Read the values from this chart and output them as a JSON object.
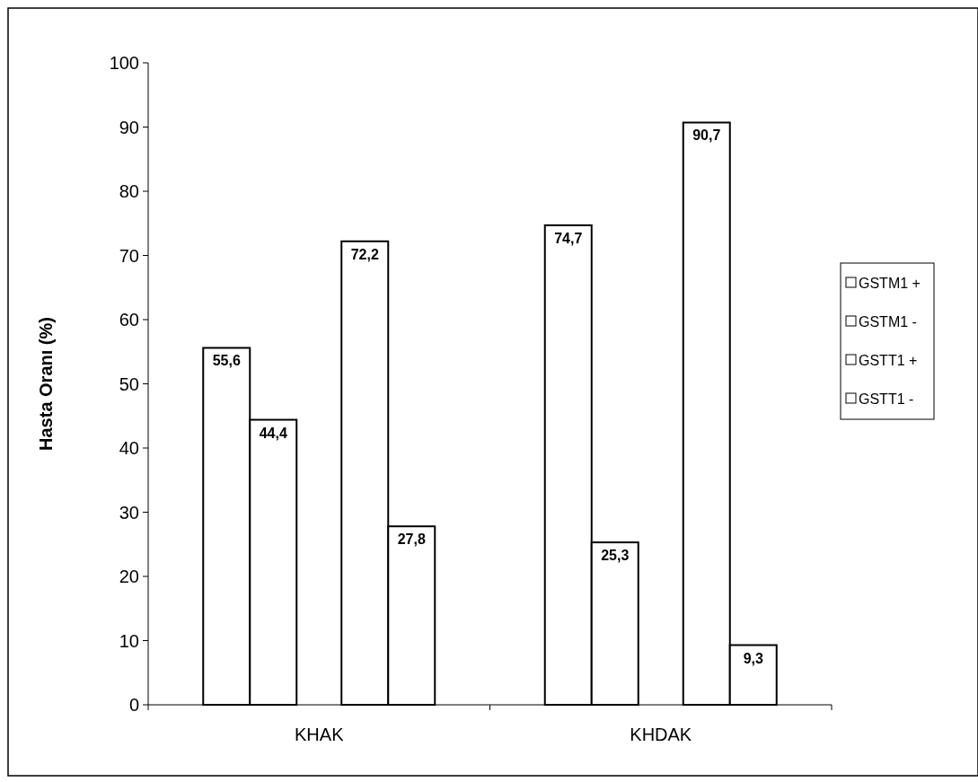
{
  "chart_data": {
    "type": "bar",
    "ylabel": "Hasta Oranı (%)",
    "categories": [
      "KHAK",
      "KHDAK"
    ],
    "series": [
      {
        "name": "GSTM1 +",
        "color": "#ffffff",
        "values": [
          55.6,
          74.7
        ],
        "value_labels": [
          "55,6",
          "74,7"
        ]
      },
      {
        "name": "GSTM1 -",
        "color": "#ffffff",
        "values": [
          44.4,
          25.3
        ],
        "value_labels": [
          "44,4",
          "25,3"
        ]
      },
      {
        "name": "GSTT1 +",
        "color": "#ffffff",
        "values": [
          72.2,
          90.7
        ],
        "value_labels": [
          "72,2",
          "90,7"
        ]
      },
      {
        "name": "GSTT1 -",
        "color": "#ffffff",
        "values": [
          27.8,
          9.3
        ],
        "value_labels": [
          "27,8",
          "9,3"
        ]
      }
    ],
    "ylim": [
      0,
      100
    ],
    "yticks": [
      0,
      10,
      20,
      30,
      40,
      50,
      60,
      70,
      80,
      90,
      100
    ],
    "grid": false,
    "legend": "right"
  }
}
